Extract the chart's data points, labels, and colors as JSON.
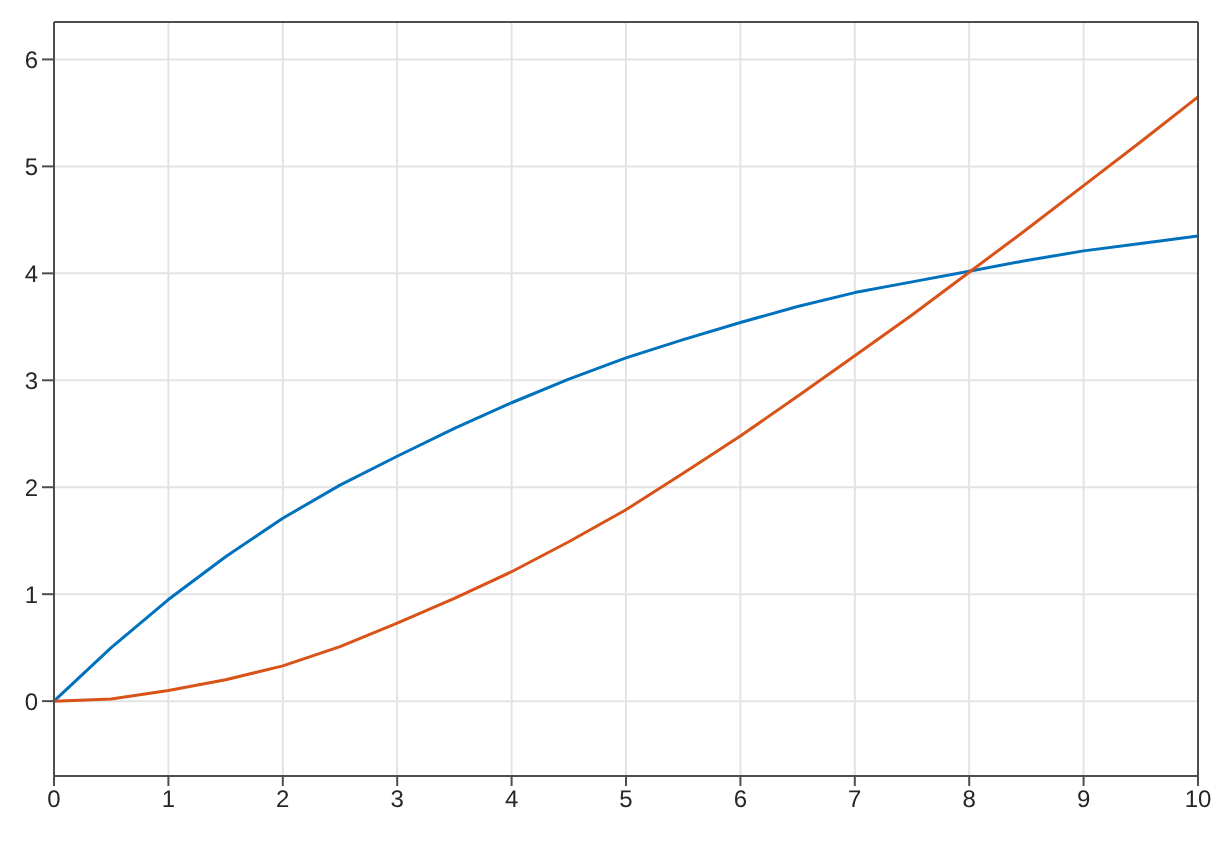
{
  "chart_data": {
    "type": "line",
    "x": [
      0,
      0.5,
      1,
      1.5,
      2,
      2.5,
      3,
      3.5,
      4,
      4.5,
      5,
      5.5,
      6,
      6.5,
      7,
      7.5,
      8,
      8.5,
      9,
      9.5,
      10
    ],
    "series": [
      {
        "color": "#0072bd",
        "values": [
          0,
          0.5,
          0.95,
          1.35,
          1.71,
          2.02,
          2.29,
          2.55,
          2.79,
          3.01,
          3.21,
          3.38,
          3.54,
          3.69,
          3.82,
          3.92,
          4.02,
          4.12,
          4.21,
          4.28,
          4.35
        ]
      },
      {
        "color": "#d95319",
        "values": [
          0,
          0.02,
          0.1,
          0.2,
          0.33,
          0.51,
          0.73,
          0.96,
          1.21,
          1.49,
          1.79,
          2.13,
          2.48,
          2.85,
          3.23,
          3.61,
          4.01,
          4.41,
          4.82,
          5.23,
          5.65
        ]
      }
    ],
    "xlim": [
      0,
      10
    ],
    "xticks": [
      0,
      1,
      2,
      3,
      4,
      5,
      6,
      7,
      8,
      9,
      10
    ],
    "ylim": [
      -0.7,
      6.35
    ],
    "yticks": [
      0,
      1,
      2,
      3,
      4,
      5,
      6
    ],
    "grid": true,
    "legend": false,
    "marker": "none",
    "line_style": "solid"
  }
}
